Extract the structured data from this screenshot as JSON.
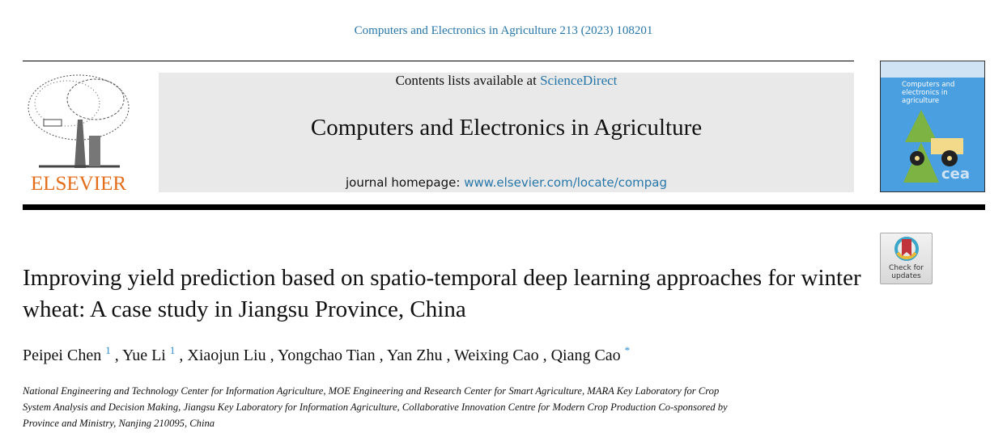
{
  "citation": "Computers and Electronics in Agriculture 213 (2023) 108201",
  "header": {
    "publisher_logo": "ELSEVIER",
    "contents_prefix": "Contents lists available at ",
    "contents_link": "ScienceDirect",
    "journal_title": "Computers and Electronics in Agriculture",
    "homepage_prefix": "journal homepage: ",
    "homepage_link": "www.elsevier.com/locate/compag",
    "cover_text": "Computers and electronics in agriculture",
    "cover_logo": "cea"
  },
  "check_updates": "Check for updates",
  "article": {
    "title": "Improving yield prediction based on spatio-temporal deep learning approaches for winter wheat: A case study in Jiangsu Province, China",
    "authors": [
      {
        "name": "Peipei Chen",
        "mark": "1"
      },
      {
        "name": "Yue Li",
        "mark": "1"
      },
      {
        "name": "Xiaojun Liu",
        "mark": ""
      },
      {
        "name": "Yongchao Tian",
        "mark": ""
      },
      {
        "name": "Yan Zhu",
        "mark": ""
      },
      {
        "name": "Weixing Cao",
        "mark": ""
      },
      {
        "name": "Qiang Cao",
        "mark": "*"
      }
    ],
    "affiliation_lines": [
      "National Engineering and Technology Center for Information Agriculture, MOE Engineering and Research Center for Smart Agriculture, MARA Key Laboratory for Crop",
      "System Analysis and Decision Making, Jiangsu Key Laboratory for Information Agriculture, Collaborative Innovation Centre for Modern Crop Production Co-sponsored by",
      "Province and Ministry, Nanjing 210095, China"
    ]
  }
}
